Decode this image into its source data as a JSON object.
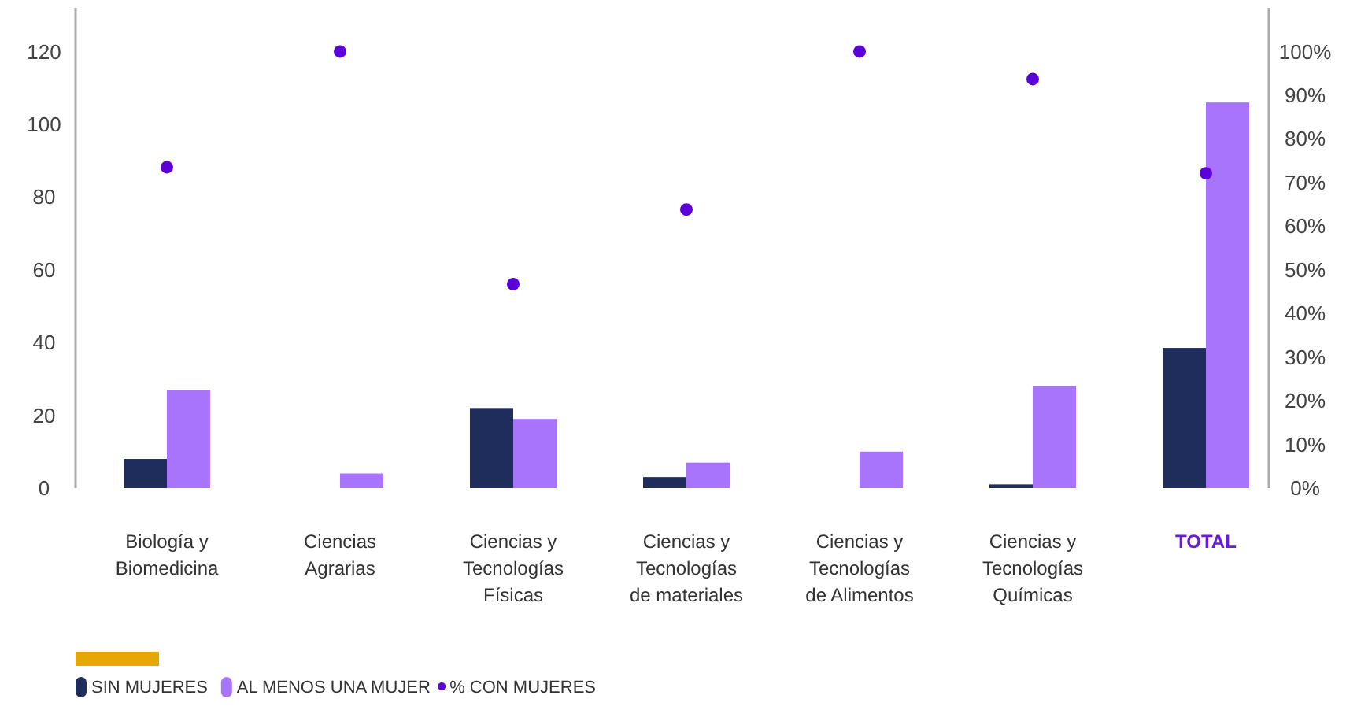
{
  "chart_data": {
    "type": "bar",
    "categories": [
      "Biología y\nBiomedicina",
      "Ciencias\nAgrarias",
      "Ciencias y\nTecnologías\nFísicas",
      "Ciencias y\nTecnologías\nde materiales",
      "Ciencias y\nTecnologías\nde Alimentos",
      "Ciencias y\nTecnologías\nQuímicas",
      "TOTAL"
    ],
    "series": [
      {
        "name": "SIN MUJERES",
        "color": "#1f2d5c",
        "values": [
          8,
          0,
          22,
          3,
          0,
          1,
          38.5
        ]
      },
      {
        "name": "AL MENOS UNA MUJER",
        "color": "#a974fc",
        "values": [
          27,
          4,
          19,
          7,
          10,
          28,
          106
        ]
      },
      {
        "name": "% CON MUJERES",
        "color": "#5b00d9",
        "type": "scatter",
        "axis": "y2",
        "marker": "circle",
        "values": [
          73.5,
          100,
          46.7,
          63.8,
          100,
          93.7,
          72.1
        ]
      }
    ],
    "ylim": [
      0,
      132
    ],
    "yticks": [
      0,
      20,
      40,
      60,
      80,
      100,
      120
    ],
    "y2lim": [
      0,
      110
    ],
    "y2ticks": [
      {
        "value": 0,
        "label": "0%"
      },
      {
        "value": 10,
        "label": "10%"
      },
      {
        "value": 20,
        "label": "20%"
      },
      {
        "value": 30,
        "label": "30%"
      },
      {
        "value": 40,
        "label": "40%"
      },
      {
        "value": 50,
        "label": "50%"
      },
      {
        "value": 60,
        "label": "60%"
      },
      {
        "value": 70,
        "label": "70%"
      },
      {
        "value": 80,
        "label": "80%"
      },
      {
        "value": 90,
        "label": "90%"
      },
      {
        "value": 100,
        "label": "100%"
      }
    ],
    "grid": false,
    "legend": "bottom"
  }
}
